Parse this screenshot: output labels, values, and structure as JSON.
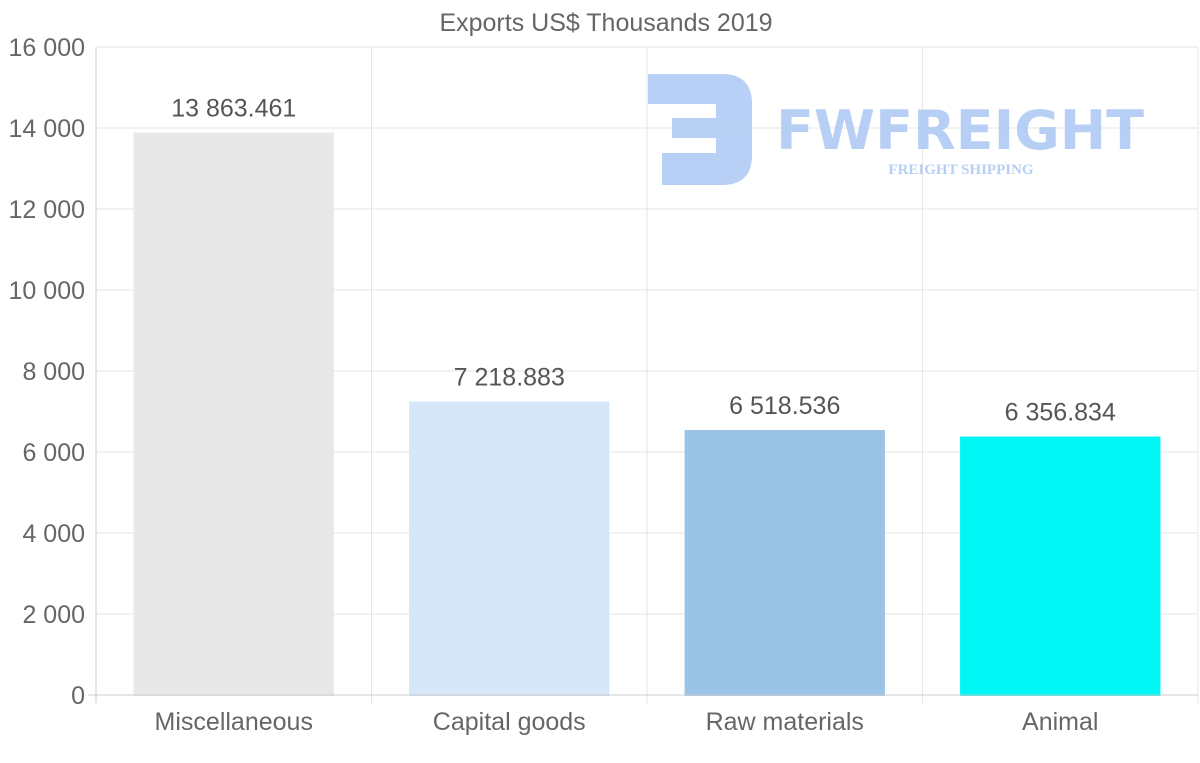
{
  "chart_data": {
    "type": "bar",
    "title": "Exports US$ Thousands 2019",
    "categories": [
      "Miscellaneous",
      "Capital goods",
      "Raw materials",
      "Animal"
    ],
    "values": [
      13863.461,
      7218.883,
      6518.536,
      6356.834
    ],
    "value_labels": [
      "13 863.461",
      "7 218.883",
      "6 518.536",
      "6 356.834"
    ],
    "colors": [
      "#e8e8e8",
      "#d6e7fa",
      "#9bc3e6",
      "#00f7f6"
    ],
    "ylim": [
      0,
      16000
    ],
    "yticks": [
      0,
      2000,
      4000,
      6000,
      8000,
      10000,
      12000,
      14000,
      16000
    ],
    "ytick_labels": [
      "0",
      "2 000",
      "4 000",
      "6 000",
      "8 000",
      "10 000",
      "12 000",
      "14 000",
      "16 000"
    ],
    "xlabel": "",
    "ylabel": "",
    "grid": true,
    "legend": "none"
  },
  "watermark": {
    "brand": "FWFREIGHT",
    "tagline": "FREIGHT SHIPPING"
  }
}
